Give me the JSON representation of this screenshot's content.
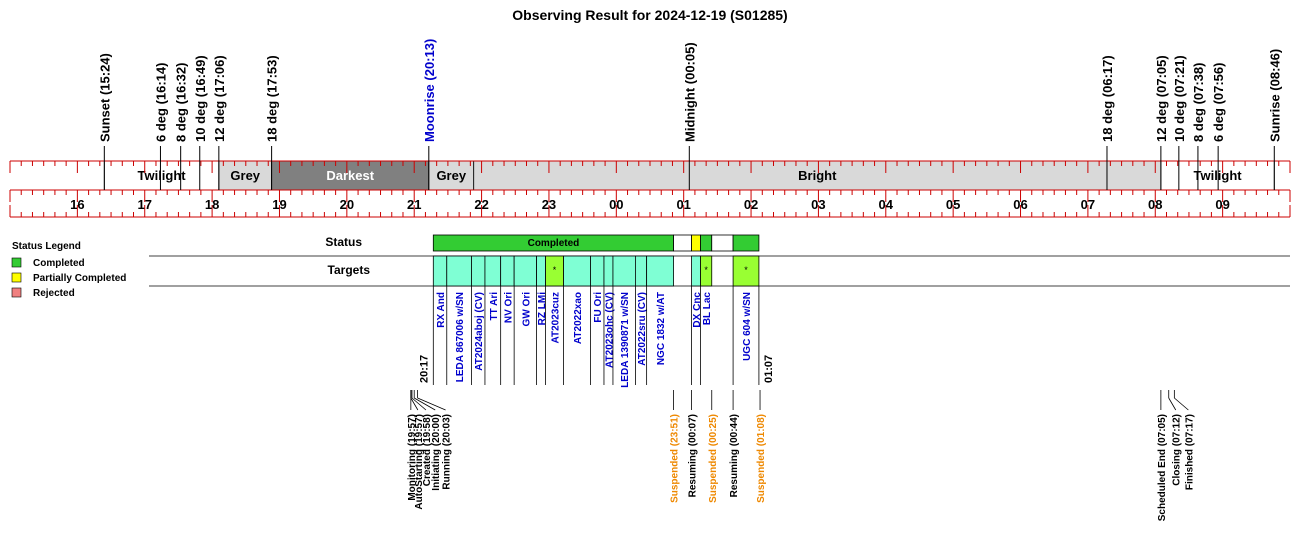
{
  "title": "Observing Result for 2024-12-19 (S01285)",
  "colors": {
    "axis": "#cc0000",
    "twilight_bg": "#ffffff",
    "grey_bg": "#d9d9d9",
    "darkest_bg": "#808080",
    "bright_bg": "#d9d9d9",
    "completed": "#33cc33",
    "partial": "#ffff00",
    "rejected": "#f08080",
    "target_fill": "#7fffd4",
    "target_flag": "#99ff33",
    "target_text": "#0000cc",
    "moon_text": "#0000cc",
    "suspended_text": "#ee8800",
    "black": "#000000"
  },
  "chart_data": {
    "type": "timeline",
    "x_range": [
      "15:24",
      "09:00"
    ],
    "hour_ticks": [
      "16",
      "17",
      "18",
      "19",
      "20",
      "21",
      "22",
      "23",
      "00",
      "01",
      "02",
      "03",
      "04",
      "05",
      "06",
      "07",
      "08",
      "09"
    ],
    "events": [
      {
        "label": "Sunset (15:24)",
        "time": "15:24",
        "color": "black"
      },
      {
        "label": "6 deg (16:14)",
        "time": "16:14",
        "color": "black"
      },
      {
        "label": "8 deg (16:32)",
        "time": "16:32",
        "color": "black"
      },
      {
        "label": "10 deg (16:49)",
        "time": "16:49",
        "color": "black"
      },
      {
        "label": "12 deg (17:06)",
        "time": "17:06",
        "color": "black"
      },
      {
        "label": "18 deg (17:53)",
        "time": "17:53",
        "color": "black"
      },
      {
        "label": "Moonrise (20:13)",
        "time": "20:13",
        "color": "moon"
      },
      {
        "label": "Midnight (00:05)",
        "time": "00:05",
        "color": "black"
      },
      {
        "label": "18 deg (06:17)",
        "time": "06:17",
        "color": "black"
      },
      {
        "label": "12 deg (07:05)",
        "time": "07:05",
        "color": "black"
      },
      {
        "label": "10 deg (07:21)",
        "time": "07:21",
        "color": "black"
      },
      {
        "label": "8 deg (07:38)",
        "time": "07:38",
        "color": "black"
      },
      {
        "label": "6 deg (07:56)",
        "time": "07:56",
        "color": "black"
      },
      {
        "label": "Sunrise (08:46)",
        "time": "08:46",
        "color": "black"
      }
    ],
    "sky_bands": [
      {
        "label": "Twilight",
        "start": "15:24",
        "end": "17:06",
        "kind": "twilight"
      },
      {
        "label": "Grey",
        "start": "17:06",
        "end": "17:53",
        "kind": "grey"
      },
      {
        "label": "Darkest",
        "start": "17:53",
        "end": "20:13",
        "kind": "darkest"
      },
      {
        "label": "Grey",
        "start": "20:13",
        "end": "20:53",
        "kind": "grey"
      },
      {
        "label": "Bright",
        "start": "20:53",
        "end": "07:05",
        "kind": "bright"
      },
      {
        "label": "Twilight",
        "start": "07:05",
        "end": "08:46",
        "kind": "twilight"
      }
    ],
    "status_row": {
      "label": "Status",
      "segments": [
        {
          "start": "20:17",
          "end": "23:51",
          "state": "completed",
          "label": "Completed"
        },
        {
          "start": "23:51",
          "end": "00:07",
          "state": "none",
          "label": ""
        },
        {
          "start": "00:07",
          "end": "00:15",
          "state": "partial",
          "label": ""
        },
        {
          "start": "00:15",
          "end": "00:25",
          "state": "completed",
          "label": ""
        },
        {
          "start": "00:25",
          "end": "00:44",
          "state": "none",
          "label": ""
        },
        {
          "start": "00:44",
          "end": "01:07",
          "state": "completed",
          "label": ""
        }
      ]
    },
    "targets_row": {
      "label": "Targets",
      "targets": [
        {
          "name": "RX And",
          "start": "20:17",
          "end": "20:29",
          "flag": false
        },
        {
          "name": "LEDA 867006 w/SN",
          "start": "20:29",
          "end": "20:51",
          "flag": false
        },
        {
          "name": "AT2024aboj (CV)",
          "start": "20:51",
          "end": "21:03",
          "flag": false
        },
        {
          "name": "TT Ari",
          "start": "21:03",
          "end": "21:17",
          "flag": false
        },
        {
          "name": "NV Ori",
          "start": "21:17",
          "end": "21:29",
          "flag": false
        },
        {
          "name": "GW Ori",
          "start": "21:29",
          "end": "21:49",
          "flag": false
        },
        {
          "name": "RZ LMi",
          "start": "21:49",
          "end": "21:57",
          "flag": false
        },
        {
          "name": "AT2023cuz",
          "start": "21:57",
          "end": "22:13",
          "flag": true,
          "mark": "*"
        },
        {
          "name": "AT2022xao",
          "start": "22:13",
          "end": "22:37",
          "flag": false
        },
        {
          "name": "FU Ori",
          "start": "22:37",
          "end": "22:49",
          "flag": false
        },
        {
          "name": "AT2023ohc (CV)",
          "start": "22:49",
          "end": "22:57",
          "flag": false
        },
        {
          "name": "LEDA 1390871 w/SN",
          "start": "22:57",
          "end": "23:17",
          "flag": false
        },
        {
          "name": "AT2022sru (CV)",
          "start": "23:17",
          "end": "23:27",
          "flag": false
        },
        {
          "name": "NGC 1832 w/AT",
          "start": "23:27",
          "end": "23:51",
          "flag": false
        },
        {
          "name": "DX Cnc",
          "start": "00:07",
          "end": "00:15",
          "flag": false
        },
        {
          "name": "BL Lac",
          "start": "00:15",
          "end": "00:25",
          "flag": true,
          "mark": "*"
        },
        {
          "name": "UGC 604 w/SN",
          "start": "00:44",
          "end": "01:07",
          "flag": true,
          "mark": "*"
        }
      ]
    },
    "time_marks": [
      {
        "label": "20:17",
        "time": "20:17"
      },
      {
        "label": "01:07",
        "time": "01:07"
      }
    ],
    "log_events": [
      {
        "label": "Monitoring (19:57)",
        "time": "19:57",
        "color": "black"
      },
      {
        "label": "AutoStarting (19:57)",
        "time": "19:57",
        "color": "black"
      },
      {
        "label": "Created (19:58)",
        "time": "19:58",
        "color": "black"
      },
      {
        "label": "Initiating (20:00)",
        "time": "20:00",
        "color": "black"
      },
      {
        "label": "Running (20:03)",
        "time": "20:03",
        "color": "black"
      },
      {
        "label": "Suspended (23:51)",
        "time": "23:51",
        "color": "suspended"
      },
      {
        "label": "Resuming (00:07)",
        "time": "00:07",
        "color": "black"
      },
      {
        "label": "Suspended (00:25)",
        "time": "00:25",
        "color": "suspended"
      },
      {
        "label": "Resuming (00:44)",
        "time": "00:44",
        "color": "black"
      },
      {
        "label": "Suspended (01:08)",
        "time": "01:08",
        "color": "suspended"
      },
      {
        "label": "Scheduled End (07:05)",
        "time": "07:05",
        "color": "black"
      },
      {
        "label": "Closing (07:12)",
        "time": "07:12",
        "color": "black"
      },
      {
        "label": "Finished (07:17)",
        "time": "07:17",
        "color": "black"
      }
    ],
    "legend": {
      "title": "Status Legend",
      "placement": "left",
      "items": [
        {
          "label": "Completed",
          "state": "completed"
        },
        {
          "label": "Partially Completed",
          "state": "partial"
        },
        {
          "label": "Rejected",
          "state": "rejected"
        }
      ]
    }
  }
}
